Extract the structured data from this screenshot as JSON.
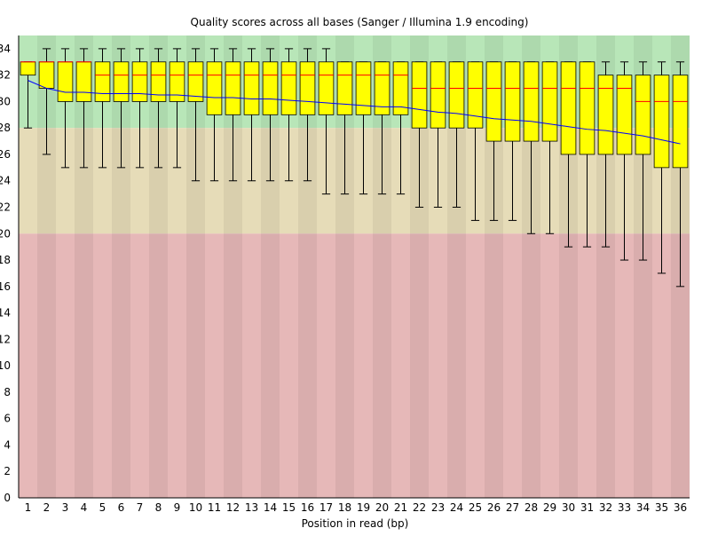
{
  "chart_data": {
    "type": "box",
    "title": "Quality scores across all bases (Sanger / Illumina 1.9 encoding)",
    "xlabel": "Position in read (bp)",
    "ylabel": "",
    "ylim": [
      0,
      35
    ],
    "yticks": [
      0,
      2,
      4,
      6,
      8,
      10,
      12,
      14,
      16,
      18,
      20,
      22,
      24,
      26,
      28,
      30,
      32,
      34
    ],
    "categories": [
      "1",
      "2",
      "3",
      "4",
      "5",
      "6",
      "7",
      "8",
      "9",
      "10",
      "11",
      "12",
      "13",
      "14",
      "15",
      "16",
      "17",
      "18",
      "19",
      "20",
      "21",
      "22",
      "23",
      "24",
      "25",
      "26",
      "27",
      "28",
      "29",
      "30",
      "31",
      "32",
      "33",
      "34",
      "35",
      "36"
    ],
    "quality_bands": [
      {
        "name": "good",
        "from": 28,
        "to": 35,
        "color": "#b8e6b8"
      },
      {
        "name": "reasonable",
        "from": 20,
        "to": 28,
        "color": "#e6dcb8"
      },
      {
        "name": "poor",
        "from": 0,
        "to": 20,
        "color": "#e6b8b8"
      }
    ],
    "series": [
      {
        "name": "lower_whisker",
        "values": [
          28,
          26,
          25,
          25,
          25,
          25,
          25,
          25,
          25,
          24,
          24,
          24,
          24,
          24,
          24,
          24,
          23,
          23,
          23,
          23,
          23,
          22,
          22,
          22,
          21,
          21,
          21,
          20,
          20,
          19,
          19,
          19,
          18,
          18,
          17,
          16
        ]
      },
      {
        "name": "q1",
        "values": [
          32,
          31,
          30,
          30,
          30,
          30,
          30,
          30,
          30,
          30,
          29,
          29,
          29,
          29,
          29,
          29,
          29,
          29,
          29,
          29,
          29,
          28,
          28,
          28,
          28,
          27,
          27,
          27,
          27,
          26,
          26,
          26,
          26,
          26,
          25,
          25
        ]
      },
      {
        "name": "median",
        "values": [
          33,
          33,
          33,
          33,
          32,
          32,
          32,
          32,
          32,
          32,
          32,
          32,
          32,
          32,
          32,
          32,
          32,
          32,
          32,
          32,
          32,
          31,
          31,
          31,
          31,
          31,
          31,
          31,
          31,
          31,
          31,
          31,
          31,
          30,
          30,
          30
        ]
      },
      {
        "name": "q3",
        "values": [
          33,
          33,
          33,
          33,
          33,
          33,
          33,
          33,
          33,
          33,
          33,
          33,
          33,
          33,
          33,
          33,
          33,
          33,
          33,
          33,
          33,
          33,
          33,
          33,
          33,
          33,
          33,
          33,
          33,
          33,
          33,
          32,
          32,
          32,
          32,
          32
        ]
      },
      {
        "name": "upper_whisker",
        "values": [
          33,
          34,
          34,
          34,
          34,
          34,
          34,
          34,
          34,
          34,
          34,
          34,
          34,
          34,
          34,
          34,
          34,
          33,
          33,
          33,
          33,
          33,
          33,
          33,
          33,
          33,
          33,
          33,
          33,
          33,
          33,
          33,
          33,
          33,
          33,
          33
        ]
      },
      {
        "name": "mean",
        "values": [
          31.6,
          31.0,
          30.7,
          30.7,
          30.6,
          30.6,
          30.6,
          30.5,
          30.5,
          30.4,
          30.3,
          30.3,
          30.2,
          30.2,
          30.1,
          30.0,
          29.9,
          29.8,
          29.7,
          29.6,
          29.6,
          29.4,
          29.2,
          29.1,
          28.9,
          28.7,
          28.6,
          28.5,
          28.3,
          28.1,
          27.9,
          27.8,
          27.6,
          27.4,
          27.1,
          26.8
        ]
      }
    ],
    "colors": {
      "box_fill": "#ffff00",
      "box_stroke": "#000000",
      "median": "#ff0000",
      "mean": "#0000ff",
      "stripe_dark": "#000000"
    },
    "grid": false,
    "legend": "none"
  }
}
